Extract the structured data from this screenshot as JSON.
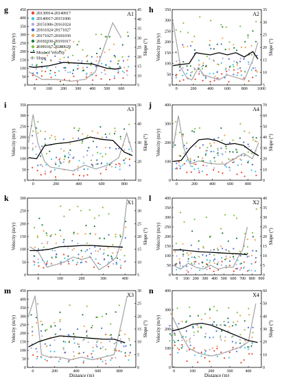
{
  "colors": {
    "period_1": "#e8432d",
    "period_2": "#3bc4e6",
    "period_3": "#b5a7d6",
    "period_4": "#4a6fd1",
    "period_5": "#f0a050",
    "period_6": "#1f7a3c",
    "period_7": "#7cc242",
    "mean_velocity": "#000000",
    "slope": "#a8a8a8"
  },
  "legend": {
    "periods": [
      "20130914-20140917",
      "20140917-20151006",
      "20151006-20161024",
      "20161024-20171027",
      "20171027-20181030",
      "20181030-20191017",
      "20191017-20200629"
    ],
    "mean_label": "Mean of Velocity",
    "slope_label": "Slope"
  },
  "chart_data": [
    {
      "type": "scatter",
      "letter": "g",
      "panel_id": "A1",
      "ylabel": "Velocity (m/y)",
      "y2label": "Slope (°)",
      "xlabel": "",
      "xlim": [
        -50,
        700
      ],
      "xticks": [
        0,
        100,
        200,
        300,
        400,
        500,
        600
      ],
      "ylim": [
        0,
        450
      ],
      "yticks": [
        0,
        50,
        100,
        150,
        200,
        250,
        300,
        350,
        400,
        450
      ],
      "y2lim": [
        5,
        45
      ],
      "y2ticks": [
        5,
        10,
        15,
        20,
        25,
        30,
        35,
        40,
        45
      ],
      "mean": [
        [
          -40,
          110
        ],
        [
          0,
          105
        ],
        [
          100,
          115
        ],
        [
          200,
          135
        ],
        [
          300,
          130
        ],
        [
          400,
          125
        ],
        [
          500,
          100
        ],
        [
          560,
          95
        ],
        [
          600,
          102
        ]
      ],
      "slope": [
        [
          -40,
          12
        ],
        [
          50,
          8
        ],
        [
          150,
          8
        ],
        [
          250,
          7
        ],
        [
          350,
          8
        ],
        [
          420,
          12
        ],
        [
          480,
          25
        ],
        [
          540,
          38
        ],
        [
          600,
          30
        ]
      ],
      "vmin": [
        15,
        50,
        60,
        60,
        70,
        80,
        85
      ],
      "vmax": [
        90,
        130,
        160,
        180,
        260,
        300,
        320
      ]
    },
    {
      "type": "scatter",
      "letter": "h",
      "panel_id": "A2",
      "ylabel": "Velocity (m/y)",
      "y2label": "Slope (°)",
      "xlabel": "",
      "xlim": [
        -50,
        1000
      ],
      "xticks": [
        0,
        200,
        400,
        600,
        800,
        1000
      ],
      "ylim": [
        0,
        350
      ],
      "yticks": [
        0,
        50,
        100,
        150,
        200,
        250,
        300,
        350
      ],
      "y2lim": [
        5,
        35
      ],
      "y2ticks": [
        5,
        10,
        15,
        20,
        25,
        30,
        35
      ],
      "mean": [
        [
          -40,
          90
        ],
        [
          50,
          95
        ],
        [
          150,
          100
        ],
        [
          230,
          150
        ],
        [
          300,
          145
        ],
        [
          400,
          140
        ],
        [
          500,
          150
        ],
        [
          600,
          140
        ],
        [
          700,
          150
        ],
        [
          800,
          130
        ],
        [
          900,
          155
        ],
        [
          960,
          120
        ]
      ],
      "slope": [
        [
          -40,
          30
        ],
        [
          50,
          12
        ],
        [
          120,
          8
        ],
        [
          180,
          7
        ],
        [
          260,
          12
        ],
        [
          320,
          9
        ],
        [
          420,
          8
        ],
        [
          500,
          7
        ],
        [
          600,
          9
        ],
        [
          700,
          8
        ],
        [
          800,
          7
        ],
        [
          900,
          15
        ],
        [
          960,
          22
        ]
      ],
      "vmin": [
        15,
        20,
        20,
        30,
        40,
        50,
        60
      ],
      "vmax": [
        70,
        120,
        150,
        190,
        220,
        280,
        320
      ]
    },
    {
      "type": "scatter",
      "letter": "i",
      "panel_id": "A3",
      "ylabel": "Velocity (m/y)",
      "y2label": "Slope (°)",
      "xlabel": "",
      "xlim": [
        -50,
        900
      ],
      "xticks": [
        0,
        200,
        400,
        600,
        800
      ],
      "ylim": [
        0,
        350
      ],
      "yticks": [
        0,
        50,
        100,
        150,
        200,
        250,
        300,
        350
      ],
      "y2lim": [
        10,
        50
      ],
      "y2ticks": [
        10,
        20,
        30,
        40,
        50
      ],
      "mean": [
        [
          -40,
          105
        ],
        [
          30,
          100
        ],
        [
          100,
          160
        ],
        [
          200,
          170
        ],
        [
          300,
          175
        ],
        [
          400,
          185
        ],
        [
          500,
          200
        ],
        [
          600,
          190
        ],
        [
          700,
          185
        ],
        [
          800,
          130
        ],
        [
          870,
          115
        ]
      ],
      "slope": [
        [
          -40,
          30
        ],
        [
          0,
          45
        ],
        [
          40,
          30
        ],
        [
          100,
          20
        ],
        [
          150,
          17
        ],
        [
          250,
          16
        ],
        [
          350,
          15
        ],
        [
          450,
          18
        ],
        [
          550,
          16
        ],
        [
          650,
          18
        ],
        [
          750,
          22
        ],
        [
          820,
          35
        ],
        [
          870,
          25
        ]
      ],
      "vmin": [
        15,
        30,
        40,
        50,
        60,
        70,
        80
      ],
      "vmax": [
        100,
        150,
        180,
        210,
        240,
        260,
        280
      ]
    },
    {
      "type": "scatter",
      "letter": "j",
      "panel_id": "A4",
      "ylabel": "Velocity (m/y)",
      "y2label": "Slope (°)",
      "xlabel": "",
      "xlim": [
        -50,
        950
      ],
      "xticks": [
        0,
        200,
        400,
        600,
        800
      ],
      "ylim": [
        0,
        400
      ],
      "yticks": [
        0,
        100,
        200,
        300,
        400
      ],
      "y2lim": [
        0,
        70
      ],
      "y2ticks": [
        0,
        10,
        20,
        30,
        40,
        50,
        60,
        70
      ],
      "mean": [
        [
          -40,
          100
        ],
        [
          50,
          105
        ],
        [
          150,
          170
        ],
        [
          250,
          215
        ],
        [
          350,
          220
        ],
        [
          450,
          210
        ],
        [
          550,
          190
        ],
        [
          650,
          195
        ],
        [
          750,
          185
        ],
        [
          850,
          150
        ],
        [
          920,
          130
        ]
      ],
      "slope": [
        [
          -40,
          30
        ],
        [
          20,
          60
        ],
        [
          80,
          30
        ],
        [
          150,
          15
        ],
        [
          250,
          18
        ],
        [
          350,
          16
        ],
        [
          450,
          15
        ],
        [
          550,
          15
        ],
        [
          650,
          20
        ],
        [
          750,
          25
        ],
        [
          850,
          20
        ],
        [
          920,
          35
        ]
      ],
      "vmin": [
        20,
        40,
        50,
        60,
        80,
        90,
        100
      ],
      "vmax": [
        110,
        160,
        190,
        230,
        260,
        290,
        320
      ]
    },
    {
      "type": "scatter",
      "letter": "k",
      "panel_id": "X1",
      "ylabel": "Velocity (m/y)",
      "y2label": "Slope (°)",
      "xlabel": "",
      "xlim": [
        -50,
        450
      ],
      "xticks": [
        0,
        100,
        200,
        300,
        400
      ],
      "ylim": [
        0,
        300
      ],
      "yticks": [
        0,
        50,
        100,
        150,
        200,
        250,
        300
      ],
      "y2lim": [
        5,
        35
      ],
      "y2ticks": [
        5,
        10,
        15,
        20,
        25,
        30,
        35
      ],
      "mean": [
        [
          -40,
          95
        ],
        [
          0,
          95
        ],
        [
          50,
          100
        ],
        [
          100,
          110
        ],
        [
          150,
          112
        ],
        [
          200,
          115
        ],
        [
          250,
          115
        ],
        [
          300,
          112
        ],
        [
          350,
          110
        ],
        [
          390,
          108
        ]
      ],
      "slope": [
        [
          -40,
          16
        ],
        [
          0,
          14
        ],
        [
          40,
          8
        ],
        [
          80,
          9
        ],
        [
          120,
          10
        ],
        [
          160,
          12
        ],
        [
          200,
          11
        ],
        [
          240,
          12
        ],
        [
          280,
          7
        ],
        [
          320,
          9
        ],
        [
          360,
          12
        ],
        [
          390,
          20
        ],
        [
          410,
          35
        ]
      ],
      "vmin": [
        20,
        30,
        40,
        40,
        50,
        60,
        60
      ],
      "vmax": [
        80,
        100,
        130,
        160,
        190,
        230,
        280
      ]
    },
    {
      "type": "scatter",
      "letter": "l",
      "panel_id": "X2",
      "ylabel": "Velocity (m/y)",
      "y2label": "Slope (°)",
      "xlabel": "",
      "xlim": [
        -50,
        900
      ],
      "xticks": [
        0,
        100,
        200,
        300,
        400,
        500,
        600,
        700,
        800,
        900
      ],
      "ylim": [
        0,
        400
      ],
      "yticks": [
        0,
        50,
        100,
        150,
        200,
        250,
        300,
        350,
        400
      ],
      "y2lim": [
        0,
        40
      ],
      "y2ticks": [
        0,
        5,
        10,
        15,
        20,
        25,
        30,
        35,
        40
      ],
      "mean": [
        [
          -40,
          130
        ],
        [
          50,
          130
        ],
        [
          150,
          125
        ],
        [
          250,
          120
        ],
        [
          350,
          118
        ],
        [
          450,
          115
        ],
        [
          550,
          112
        ],
        [
          650,
          110
        ],
        [
          750,
          105
        ]
      ],
      "slope": [
        [
          -40,
          5
        ],
        [
          40,
          3
        ],
        [
          120,
          6
        ],
        [
          200,
          4
        ],
        [
          280,
          3
        ],
        [
          360,
          5
        ],
        [
          440,
          3
        ],
        [
          520,
          4
        ],
        [
          600,
          4
        ],
        [
          660,
          10
        ],
        [
          700,
          13
        ],
        [
          750,
          25
        ]
      ],
      "vmin": [
        15,
        20,
        20,
        30,
        40,
        50,
        60
      ],
      "vmax": [
        70,
        100,
        130,
        160,
        200,
        260,
        350
      ]
    },
    {
      "type": "scatter",
      "letter": "m",
      "panel_id": "X3",
      "ylabel": "Velocity (m/y)",
      "y2label": "Slope (°)",
      "xlabel": "Distance (m)",
      "xlim": [
        -50,
        950
      ],
      "xticks": [
        0,
        200,
        400,
        600,
        800
      ],
      "ylim": [
        0,
        450
      ],
      "yticks": [
        0,
        50,
        100,
        150,
        200,
        250,
        300,
        350,
        400,
        450
      ],
      "y2lim": [
        0,
        30
      ],
      "y2ticks": [
        0,
        5,
        10,
        15,
        20,
        25,
        30
      ],
      "mean": [
        [
          -40,
          120
        ],
        [
          50,
          150
        ],
        [
          150,
          170
        ],
        [
          250,
          185
        ],
        [
          350,
          180
        ],
        [
          450,
          175
        ],
        [
          550,
          170
        ],
        [
          650,
          165
        ],
        [
          750,
          165
        ],
        [
          850,
          145
        ]
      ],
      "slope": [
        [
          -40,
          20
        ],
        [
          20,
          28
        ],
        [
          80,
          5
        ],
        [
          150,
          4
        ],
        [
          250,
          4
        ],
        [
          350,
          3
        ],
        [
          450,
          4
        ],
        [
          550,
          3
        ],
        [
          650,
          4
        ],
        [
          750,
          5
        ],
        [
          820,
          18
        ],
        [
          870,
          28
        ]
      ],
      "vmin": [
        20,
        30,
        40,
        50,
        60,
        70,
        80
      ],
      "vmax": [
        100,
        150,
        190,
        230,
        280,
        330,
        380
      ]
    },
    {
      "type": "scatter",
      "letter": "n",
      "panel_id": "X4",
      "ylabel": "Velocity (m/y)",
      "y2label": "Slope (°)",
      "xlabel": "Distance (m)",
      "xlim": [
        -10,
        470
      ],
      "xticks": [
        0,
        100,
        200,
        300,
        400
      ],
      "ylim": [
        0,
        400
      ],
      "yticks": [
        0,
        100,
        200,
        300,
        400
      ],
      "y2lim": [
        0,
        60
      ],
      "y2ticks": [
        0,
        10,
        20,
        30,
        40,
        50,
        60
      ],
      "mean": [
        [
          -10,
          190
        ],
        [
          50,
          205
        ],
        [
          100,
          225
        ],
        [
          150,
          230
        ],
        [
          200,
          220
        ],
        [
          250,
          200
        ],
        [
          300,
          180
        ],
        [
          350,
          160
        ],
        [
          400,
          140
        ],
        [
          450,
          130
        ]
      ],
      "slope": [
        [
          -10,
          40
        ],
        [
          40,
          25
        ],
        [
          80,
          15
        ],
        [
          120,
          12
        ],
        [
          160,
          10
        ],
        [
          200,
          9
        ],
        [
          240,
          10
        ],
        [
          280,
          12
        ],
        [
          320,
          14
        ],
        [
          360,
          16
        ],
        [
          400,
          20
        ],
        [
          440,
          50
        ]
      ],
      "vmin": [
        20,
        40,
        60,
        70,
        90,
        100,
        110
      ],
      "vmax": [
        120,
        170,
        210,
        240,
        280,
        310,
        340
      ]
    }
  ]
}
